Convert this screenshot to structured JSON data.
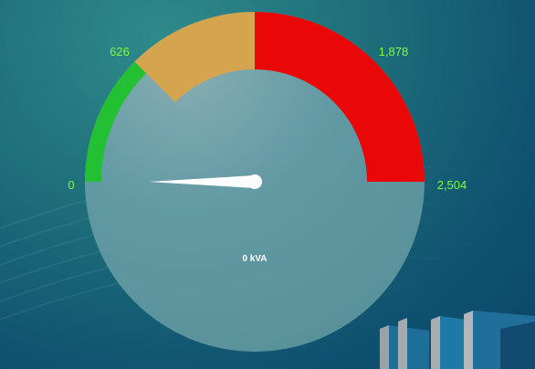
{
  "gauge": {
    "min": 0,
    "max": 2504,
    "value": 0,
    "unit": "kVA",
    "value_text": "0 kVA",
    "tick_labels": {
      "min": "0",
      "t1": "626",
      "t2": "1,878",
      "max": "2,504"
    },
    "bands": [
      {
        "from": 0,
        "to": 626,
        "color": "#22c032"
      },
      {
        "from": 626,
        "to": 1252,
        "color": "#d4a54e"
      },
      {
        "from": 1252,
        "to": 2504,
        "color": "#e80808"
      }
    ],
    "face_color": "#5e97a0",
    "needle_color": "#ffffff"
  }
}
